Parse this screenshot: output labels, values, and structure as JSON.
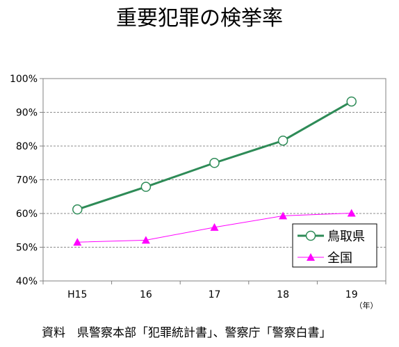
{
  "chart_data": {
    "type": "line",
    "title": "重要犯罪の検挙率",
    "categories": [
      "H15",
      "16",
      "17",
      "18",
      "19"
    ],
    "x_unit": "（年）",
    "ylim": [
      40,
      100
    ],
    "yticks": [
      40,
      50,
      60,
      70,
      80,
      90,
      100
    ],
    "ytick_labels": [
      "40%",
      "50%",
      "60%",
      "70%",
      "80%",
      "90%",
      "100%"
    ],
    "grid": "horizontal-dashed",
    "legend_position": "bottom-right",
    "series": [
      {
        "name": "鳥取県",
        "values": [
          61.2,
          67.9,
          75.0,
          81.6,
          93.2
        ],
        "color": "#2e8b57",
        "marker": "circle"
      },
      {
        "name": "全国",
        "values": [
          51.5,
          52.1,
          55.9,
          59.3,
          60.1
        ],
        "color": "#ff00ff",
        "marker": "triangle"
      }
    ],
    "source": "資料　県警察本部「犯罪統計書」、警察庁「警察白書」"
  }
}
